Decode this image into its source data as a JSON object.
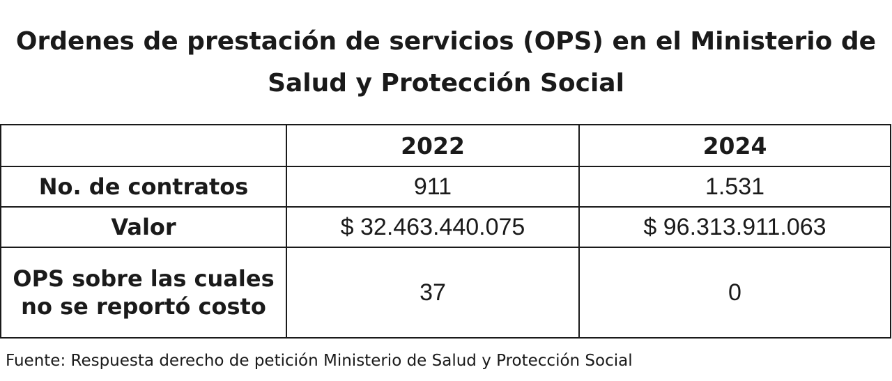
{
  "title": "Ordenes de prestación de servicios (OPS) en el Ministerio de Salud y Protección Social",
  "table": {
    "columns": [
      "",
      "2022",
      "2024"
    ],
    "rows": [
      {
        "label": "No. de contratos",
        "v2022": "911",
        "v2024": "1.531"
      },
      {
        "label": "Valor",
        "v2022": "$ 32.463.440.075",
        "v2024": "$ 96.313.911.063"
      },
      {
        "label": "OPS sobre las cuales no se reportó costo",
        "v2022": "37",
        "v2024": "0"
      }
    ]
  },
  "source": "Fuente: Respuesta derecho de petición Ministerio de Salud y Protección Social"
}
